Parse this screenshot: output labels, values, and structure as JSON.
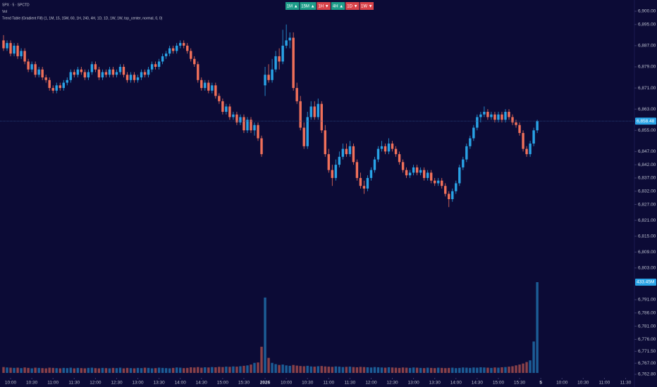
{
  "chart_data": {
    "type": "candlestick",
    "header": [
      "SPX · 5 · SPCTD",
      "Vol",
      "Trend Table (Gradient Fill) (1, 1M, 15, 15M, 60, 1H, 240, 4H, 1D, 1D, 1W, 1W, top_center, normal, 0, 0)"
    ],
    "toolbar": [
      {
        "label": "1M ▲",
        "color": "#1e9e8a"
      },
      {
        "label": "15M ▲",
        "color": "#1e9e8a"
      },
      {
        "label": "1H ▼",
        "color": "#d9434a"
      },
      {
        "label": "4H ▲",
        "color": "#1e9e8a"
      },
      {
        "label": "1D ▼",
        "color": "#d9434a"
      },
      {
        "label": "1W ▼",
        "color": "#d9434a"
      }
    ],
    "up_color": "#29a3e6",
    "down_color": "#f0705a",
    "xlim": [
      -1,
      178.5
    ],
    "xticks": [
      {
        "value": 2,
        "label": "10:00"
      },
      {
        "value": 8,
        "label": "10:30"
      },
      {
        "value": 14,
        "label": "11:00"
      },
      {
        "value": 20,
        "label": "11:30"
      },
      {
        "value": 26,
        "label": "12:00"
      },
      {
        "value": 32,
        "label": "12:30"
      },
      {
        "value": 38,
        "label": "13:00"
      },
      {
        "value": 44,
        "label": "13:30"
      },
      {
        "value": 50,
        "label": "14:00"
      },
      {
        "value": 56,
        "label": "14:30"
      },
      {
        "value": 62,
        "label": "15:00"
      },
      {
        "value": 68,
        "label": "15:30"
      },
      {
        "value": 74,
        "label": "2026"
      },
      {
        "value": 80,
        "label": "10:00"
      },
      {
        "value": 86,
        "label": "10:30"
      },
      {
        "value": 92,
        "label": "11:00"
      },
      {
        "value": 98,
        "label": "11:30"
      },
      {
        "value": 104,
        "label": "12:00"
      },
      {
        "value": 110,
        "label": "12:30"
      },
      {
        "value": 116,
        "label": "13:00"
      },
      {
        "value": 122,
        "label": "13:30"
      },
      {
        "value": 128,
        "label": "14:00"
      },
      {
        "value": 134,
        "label": "14:30"
      },
      {
        "value": 140,
        "label": "15:00"
      },
      {
        "value": 146,
        "label": "15:30"
      },
      {
        "value": 152,
        "label": "5"
      },
      {
        "value": 158,
        "label": "10:00"
      },
      {
        "value": 164,
        "label": "10:30"
      },
      {
        "value": 170,
        "label": "11:00"
      },
      {
        "value": 176,
        "label": "11:30"
      }
    ],
    "ylim": [
      6762.8,
      6900
    ],
    "yticks": [
      {
        "value": 6900,
        "label": "6,900.00"
      },
      {
        "value": 6895,
        "label": "6,895.00"
      },
      {
        "value": 6887,
        "label": "6,887.00"
      },
      {
        "value": 6879,
        "label": "6,879.00"
      },
      {
        "value": 6871,
        "label": "6,871.00"
      },
      {
        "value": 6863,
        "label": "6,863.00"
      },
      {
        "value": 6855,
        "label": "6,855.00"
      },
      {
        "value": 6847,
        "label": "6,847.00"
      },
      {
        "value": 6842,
        "label": "6,842.00"
      },
      {
        "value": 6837,
        "label": "6,837.00"
      },
      {
        "value": 6832,
        "label": "6,832.00"
      },
      {
        "value": 6827,
        "label": "6,827.00"
      },
      {
        "value": 6821,
        "label": "6,821.00"
      },
      {
        "value": 6815,
        "label": "6,815.00"
      },
      {
        "value": 6809,
        "label": "6,809.00"
      },
      {
        "value": 6803,
        "label": "6,803.00"
      },
      {
        "value": 6791,
        "label": "6,791.00"
      },
      {
        "value": 6786,
        "label": "6,786.00"
      },
      {
        "value": 6781,
        "label": "6,781.00"
      },
      {
        "value": 6776,
        "label": "6,776.00"
      },
      {
        "value": 6771.5,
        "label": "6,771.50"
      },
      {
        "value": 6767,
        "label": "6,767.00"
      },
      {
        "value": 6762.8,
        "label": "6,762.80"
      }
    ],
    "last_price": {
      "value": 6858.48,
      "label": "6,858.48"
    },
    "vlim": [
      0,
      433.45
    ],
    "vticks": [
      {
        "value": 433.45,
        "label": "433.45M"
      }
    ],
    "ohlc": [
      [
        6889,
        6891,
        6885,
        6886
      ],
      [
        6886,
        6889,
        6885,
        6888
      ],
      [
        6888,
        6889,
        6883,
        6884
      ],
      [
        6884,
        6888,
        6883,
        6887
      ],
      [
        6887,
        6888,
        6882,
        6883
      ],
      [
        6883,
        6886,
        6882,
        6885
      ],
      [
        6885,
        6886,
        6880,
        6881
      ],
      [
        6881,
        6882,
        6877,
        6878
      ],
      [
        6878,
        6881,
        6877,
        6880
      ],
      [
        6880,
        6881,
        6875,
        6876
      ],
      [
        6876,
        6879,
        6875,
        6878
      ],
      [
        6878,
        6879,
        6874,
        6875
      ],
      [
        6875,
        6876,
        6873,
        6874
      ],
      [
        6874,
        6875,
        6870,
        6871
      ],
      [
        6871,
        6872,
        6869,
        6870
      ],
      [
        6870,
        6873,
        6869,
        6872
      ],
      [
        6872,
        6873,
        6870,
        6871
      ],
      [
        6871,
        6874,
        6870,
        6873
      ],
      [
        6873,
        6875,
        6872,
        6874
      ],
      [
        6874,
        6878,
        6873,
        6877
      ],
      [
        6877,
        6878,
        6875,
        6876
      ],
      [
        6876,
        6879,
        6875,
        6878
      ],
      [
        6878,
        6879,
        6876,
        6877
      ],
      [
        6877,
        6878,
        6874,
        6875
      ],
      [
        6875,
        6878,
        6874,
        6877
      ],
      [
        6877,
        6881,
        6876,
        6880
      ],
      [
        6880,
        6881,
        6877,
        6878
      ],
      [
        6878,
        6879,
        6874,
        6875
      ],
      [
        6875,
        6878,
        6874,
        6877
      ],
      [
        6877,
        6878,
        6875,
        6876
      ],
      [
        6876,
        6879,
        6875,
        6878
      ],
      [
        6878,
        6879,
        6875,
        6876
      ],
      [
        6876,
        6878,
        6875,
        6877
      ],
      [
        6877,
        6880,
        6876,
        6879
      ],
      [
        6879,
        6880,
        6875,
        6876
      ],
      [
        6876,
        6877,
        6873,
        6874
      ],
      [
        6874,
        6877,
        6873,
        6876
      ],
      [
        6876,
        6877,
        6873,
        6874
      ],
      [
        6874,
        6876,
        6873,
        6875
      ],
      [
        6875,
        6878,
        6874,
        6877
      ],
      [
        6877,
        6878,
        6875,
        6876
      ],
      [
        6876,
        6879,
        6875,
        6878
      ],
      [
        6878,
        6881,
        6877,
        6880
      ],
      [
        6880,
        6881,
        6878,
        6879
      ],
      [
        6879,
        6882,
        6878,
        6881
      ],
      [
        6881,
        6884,
        6880,
        6883
      ],
      [
        6883,
        6885,
        6882,
        6884
      ],
      [
        6884,
        6887,
        6883,
        6886
      ],
      [
        6886,
        6887,
        6884,
        6885
      ],
      [
        6885,
        6888,
        6884,
        6887
      ],
      [
        6887,
        6889,
        6886,
        6888
      ],
      [
        6888,
        6889,
        6886,
        6887
      ],
      [
        6887,
        6888,
        6884,
        6885
      ],
      [
        6885,
        6886,
        6881,
        6882
      ],
      [
        6882,
        6883,
        6879,
        6880
      ],
      [
        6880,
        6881,
        6873,
        6874
      ],
      [
        6874,
        6875,
        6870,
        6871
      ],
      [
        6871,
        6874,
        6870,
        6873
      ],
      [
        6873,
        6874,
        6869,
        6870
      ],
      [
        6870,
        6873,
        6869,
        6872
      ],
      [
        6872,
        6873,
        6867,
        6868
      ],
      [
        6868,
        6869,
        6865,
        6866
      ],
      [
        6866,
        6867,
        6861,
        6862
      ],
      [
        6862,
        6865,
        6861,
        6864
      ],
      [
        6864,
        6865,
        6859,
        6860
      ],
      [
        6860,
        6862,
        6859,
        6861
      ],
      [
        6861,
        6862,
        6857,
        6858
      ],
      [
        6858,
        6861,
        6857,
        6860
      ],
      [
        6860,
        6861,
        6854,
        6855
      ],
      [
        6855,
        6860,
        6854,
        6859
      ],
      [
        6859,
        6860,
        6854,
        6855
      ],
      [
        6855,
        6858,
        6853,
        6857
      ],
      [
        6857,
        6858,
        6851,
        6852
      ],
      [
        6852,
        6853,
        6845,
        6846
      ],
      [
        6872,
        6879,
        6868,
        6876
      ],
      [
        6876,
        6880,
        6873,
        6874
      ],
      [
        6874,
        6882,
        6873,
        6878
      ],
      [
        6878,
        6885,
        6877,
        6883
      ],
      [
        6883,
        6886,
        6878,
        6881
      ],
      [
        6881,
        6893,
        6880,
        6887
      ],
      [
        6887,
        6895,
        6886,
        6889
      ],
      [
        6889,
        6892,
        6886,
        6890
      ],
      [
        6890,
        6892,
        6870,
        6871
      ],
      [
        6871,
        6873,
        6865,
        6866
      ],
      [
        6866,
        6868,
        6855,
        6856
      ],
      [
        6856,
        6858,
        6848,
        6849
      ],
      [
        6849,
        6862,
        6848,
        6860
      ],
      [
        6860,
        6866,
        6859,
        6864
      ],
      [
        6864,
        6866,
        6859,
        6860
      ],
      [
        6860,
        6867,
        6859,
        6865
      ],
      [
        6865,
        6866,
        6854,
        6855
      ],
      [
        6855,
        6857,
        6845,
        6846
      ],
      [
        6846,
        6848,
        6839,
        6840
      ],
      [
        6840,
        6842,
        6834,
        6837
      ],
      [
        6837,
        6844,
        6836,
        6842
      ],
      [
        6842,
        6847,
        6841,
        6845
      ],
      [
        6845,
        6850,
        6844,
        6848
      ],
      [
        6848,
        6850,
        6845,
        6846
      ],
      [
        6846,
        6851,
        6845,
        6849
      ],
      [
        6849,
        6850,
        6842,
        6843
      ],
      [
        6843,
        6844,
        6836,
        6837
      ],
      [
        6837,
        6839,
        6833,
        6834
      ],
      [
        6834,
        6836,
        6831,
        6833
      ],
      [
        6833,
        6838,
        6832,
        6837
      ],
      [
        6837,
        6841,
        6836,
        6840
      ],
      [
        6840,
        6845,
        6839,
        6844
      ],
      [
        6844,
        6849,
        6843,
        6848
      ],
      [
        6848,
        6851,
        6847,
        6849
      ],
      [
        6849,
        6850,
        6846,
        6847
      ],
      [
        6847,
        6852,
        6846,
        6850
      ],
      [
        6850,
        6851,
        6847,
        6848
      ],
      [
        6848,
        6849,
        6845,
        6846
      ],
      [
        6846,
        6847,
        6842,
        6843
      ],
      [
        6843,
        6844,
        6839,
        6840
      ],
      [
        6840,
        6841,
        6837,
        6838
      ],
      [
        6838,
        6840,
        6837,
        6839
      ],
      [
        6839,
        6842,
        6838,
        6841
      ],
      [
        6841,
        6842,
        6838,
        6839
      ],
      [
        6839,
        6841,
        6838,
        6840
      ],
      [
        6840,
        6841,
        6836,
        6837
      ],
      [
        6837,
        6840,
        6836,
        6839
      ],
      [
        6839,
        6840,
        6835,
        6836
      ],
      [
        6836,
        6837,
        6834,
        6835
      ],
      [
        6835,
        6837,
        6834,
        6836
      ],
      [
        6836,
        6837,
        6833,
        6834
      ],
      [
        6834,
        6835,
        6830,
        6831
      ],
      [
        6831,
        6832,
        6826,
        6829
      ],
      [
        6829,
        6833,
        6828,
        6832
      ],
      [
        6832,
        6836,
        6831,
        6835
      ],
      [
        6835,
        6842,
        6834,
        6841
      ],
      [
        6841,
        6845,
        6840,
        6844
      ],
      [
        6844,
        6850,
        6843,
        6849
      ],
      [
        6849,
        6853,
        6848,
        6852
      ],
      [
        6852,
        6857,
        6851,
        6856
      ],
      [
        6856,
        6861,
        6855,
        6860
      ],
      [
        6860,
        6862,
        6858,
        6861
      ],
      [
        6861,
        6864,
        6860,
        6862
      ],
      [
        6862,
        6863,
        6859,
        6860
      ],
      [
        6860,
        6862,
        6859,
        6861
      ],
      [
        6861,
        6862,
        6858,
        6859
      ],
      [
        6859,
        6862,
        6858,
        6861
      ],
      [
        6861,
        6862,
        6858,
        6859
      ],
      [
        6859,
        6863,
        6858,
        6862
      ],
      [
        6862,
        6863,
        6859,
        6860
      ],
      [
        6860,
        6861,
        6857,
        6858
      ],
      [
        6858,
        6859,
        6856,
        6857
      ],
      [
        6857,
        6858,
        6853,
        6854
      ],
      [
        6854,
        6855,
        6847,
        6848
      ],
      [
        6848,
        6849,
        6845,
        6846
      ],
      [
        6846,
        6851,
        6845,
        6850
      ],
      [
        6850,
        6856,
        6849,
        6855
      ],
      [
        6855,
        6859,
        6854,
        6858.48
      ]
    ],
    "volume": [
      28,
      26,
      25,
      24,
      25,
      23,
      26,
      24,
      22,
      25,
      24,
      23,
      22,
      25,
      24,
      23,
      22,
      24,
      23,
      25,
      22,
      24,
      23,
      22,
      24,
      25,
      23,
      22,
      24,
      23,
      22,
      24,
      23,
      25,
      22,
      24,
      23,
      22,
      24,
      23,
      25,
      24,
      22,
      23,
      25,
      24,
      23,
      22,
      24,
      26,
      25,
      23,
      24,
      27,
      26,
      28,
      25,
      27,
      26,
      28,
      27,
      29,
      28,
      30,
      29,
      31,
      30,
      32,
      34,
      36,
      40,
      48,
      50,
      125,
      360,
      72,
      48,
      42,
      38,
      40,
      36,
      34,
      38,
      35,
      33,
      32,
      34,
      31,
      30,
      32,
      33,
      31,
      30,
      29,
      31,
      30,
      28,
      29,
      30,
      28,
      27,
      29,
      28,
      27,
      26,
      28,
      27,
      26,
      25,
      27,
      26,
      25,
      24,
      26,
      25,
      24,
      26,
      25,
      24,
      23,
      25,
      24,
      23,
      25,
      24,
      23,
      24,
      25,
      23,
      24,
      26,
      25,
      24,
      26,
      25,
      27,
      26,
      25,
      24,
      26,
      25,
      27,
      28,
      30,
      32,
      36,
      40,
      45,
      52,
      60,
      150,
      433.45
    ]
  }
}
